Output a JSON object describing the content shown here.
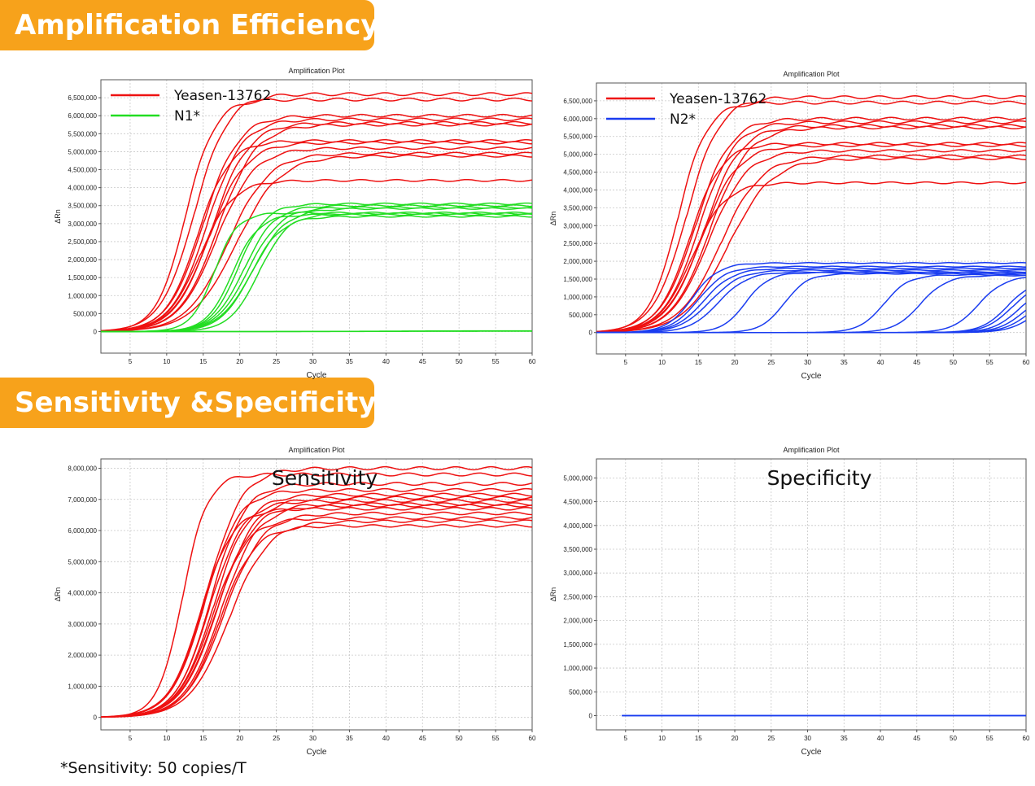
{
  "sections": {
    "efficiency_title": "Amplification Efficiency",
    "sensitivity_title": "Sensitivity &Specificity"
  },
  "footnote": "*Sensitivity: 50 copies/T",
  "colors": {
    "badge": "#f7a21b",
    "red": "#ee1111",
    "green": "#22dd22",
    "blue": "#1a3cf0"
  },
  "chart_data": [
    {
      "id": "chart1",
      "type": "line",
      "title": "Amplification Plot",
      "xlabel": "Cycle",
      "ylabel": "ΔRn",
      "xlim": [
        1,
        60
      ],
      "ylim": [
        -600000,
        7000000
      ],
      "xticks": [
        5,
        10,
        15,
        20,
        25,
        30,
        35,
        40,
        45,
        50,
        55,
        60
      ],
      "yticks": [
        0,
        500000,
        1000000,
        1500000,
        2000000,
        2500000,
        3000000,
        3500000,
        4000000,
        4500000,
        5000000,
        5500000,
        6000000,
        6500000
      ],
      "ytick_labels": [
        "0",
        "500,000",
        "1,000,000",
        "1,500,000",
        "2,000,000",
        "2,500,000",
        "3,000,000",
        "3,500,000",
        "4,000,000",
        "4,500,000",
        "5,000,000",
        "5,500,000",
        "6,000,000",
        "6,500,000"
      ],
      "grid": true,
      "legend": {
        "position": "top-left",
        "entries": [
          {
            "label": "Yeasen-13762",
            "color": "#ee1111"
          },
          {
            "label": "N1*",
            "color": "#22dd22"
          }
        ]
      },
      "series": [
        {
          "color": "#ee1111",
          "curves": [
            {
              "plateau": 6600000,
              "midpoint": 13.8,
              "slope": 2.3
            },
            {
              "plateau": 6450000,
              "midpoint": 12.6,
              "slope": 2.0
            },
            {
              "plateau": 6000000,
              "midpoint": 15.0,
              "slope": 2.4
            },
            {
              "plateau": 5900000,
              "midpoint": 15.5,
              "slope": 2.4
            },
            {
              "plateau": 5800000,
              "midpoint": 16.2,
              "slope": 2.5
            },
            {
              "plateau": 5750000,
              "midpoint": 17.0,
              "slope": 2.6
            },
            {
              "plateau": 5300000,
              "midpoint": 14.2,
              "slope": 2.2
            },
            {
              "plateau": 5250000,
              "midpoint": 15.8,
              "slope": 2.5
            },
            {
              "plateau": 5100000,
              "midpoint": 16.8,
              "slope": 2.6
            },
            {
              "plateau": 4950000,
              "midpoint": 18.4,
              "slope": 2.8
            },
            {
              "plateau": 4880000,
              "midpoint": 19.5,
              "slope": 3.0
            },
            {
              "plateau": 4200000,
              "midpoint": 14.5,
              "slope": 2.3
            }
          ]
        },
        {
          "color": "#22dd22",
          "curves": [
            {
              "plateau": 3550000,
              "midpoint": 19.8,
              "slope": 1.9
            },
            {
              "plateau": 3500000,
              "midpoint": 20.6,
              "slope": 2.1
            },
            {
              "plateau": 3450000,
              "midpoint": 21.2,
              "slope": 2.2
            },
            {
              "plateau": 3420000,
              "midpoint": 21.8,
              "slope": 2.3
            },
            {
              "plateau": 3300000,
              "midpoint": 16.5,
              "slope": 1.6
            },
            {
              "plateau": 3280000,
              "midpoint": 22.6,
              "slope": 2.0
            },
            {
              "plateau": 3250000,
              "midpoint": 19.0,
              "slope": 1.8
            },
            {
              "plateau": 3200000,
              "midpoint": 21.5,
              "slope": 2.1
            },
            {
              "plateau": 20000,
              "midpoint": 40,
              "slope": 5
            },
            {
              "plateau": 10000,
              "midpoint": 40,
              "slope": 5
            }
          ]
        }
      ]
    },
    {
      "id": "chart2",
      "type": "line",
      "title": "Amplification Plot",
      "xlabel": "Cycle",
      "ylabel": "ΔRn",
      "xlim": [
        1,
        60
      ],
      "ylim": [
        -600000,
        7000000
      ],
      "xticks": [
        5,
        10,
        15,
        20,
        25,
        30,
        35,
        40,
        45,
        50,
        55,
        60
      ],
      "yticks": [
        0,
        500000,
        1000000,
        1500000,
        2000000,
        2500000,
        3000000,
        3500000,
        4000000,
        4500000,
        5000000,
        5500000,
        6000000,
        6500000
      ],
      "ytick_labels": [
        "0",
        "500,000",
        "1,000,000",
        "1,500,000",
        "2,000,000",
        "2,500,000",
        "3,000,000",
        "3,500,000",
        "4,000,000",
        "4,500,000",
        "5,000,000",
        "5,500,000",
        "6,000,000",
        "6,500,000"
      ],
      "grid": true,
      "legend": {
        "position": "top-left",
        "entries": [
          {
            "label": "Yeasen-13762",
            "color": "#ee1111"
          },
          {
            "label": "N2*",
            "color": "#1a3cf0"
          }
        ]
      },
      "series": [
        {
          "color": "#ee1111",
          "curves": [
            {
              "plateau": 6600000,
              "midpoint": 13.4,
              "slope": 2.3
            },
            {
              "plateau": 6450000,
              "midpoint": 12.2,
              "slope": 2.0
            },
            {
              "plateau": 6000000,
              "midpoint": 14.6,
              "slope": 2.4
            },
            {
              "plateau": 5900000,
              "midpoint": 15.1,
              "slope": 2.4
            },
            {
              "plateau": 5800000,
              "midpoint": 15.8,
              "slope": 2.5
            },
            {
              "plateau": 5750000,
              "midpoint": 16.6,
              "slope": 2.6
            },
            {
              "plateau": 5300000,
              "midpoint": 13.8,
              "slope": 2.2
            },
            {
              "plateau": 5250000,
              "midpoint": 15.4,
              "slope": 2.5
            },
            {
              "plateau": 5100000,
              "midpoint": 16.4,
              "slope": 2.6
            },
            {
              "plateau": 4950000,
              "midpoint": 18.0,
              "slope": 2.8
            },
            {
              "plateau": 4880000,
              "midpoint": 19.1,
              "slope": 3.0
            },
            {
              "plateau": 4200000,
              "midpoint": 14.1,
              "slope": 2.3
            }
          ]
        },
        {
          "color": "#1a3cf0",
          "curves": [
            {
              "plateau": 1950000,
              "midpoint": 14.2,
              "slope": 1.8
            },
            {
              "plateau": 1850000,
              "midpoint": 15.0,
              "slope": 1.9
            },
            {
              "plateau": 1800000,
              "midpoint": 15.8,
              "slope": 2.0
            },
            {
              "plateau": 1750000,
              "midpoint": 16.6,
              "slope": 2.1
            },
            {
              "plateau": 1700000,
              "midpoint": 17.8,
              "slope": 2.0
            },
            {
              "plateau": 1680000,
              "midpoint": 21.5,
              "slope": 1.6
            },
            {
              "plateau": 1650000,
              "midpoint": 26.8,
              "slope": 1.6
            },
            {
              "plateau": 1620000,
              "midpoint": 40.5,
              "slope": 1.7
            },
            {
              "plateau": 1600000,
              "midpoint": 45.5,
              "slope": 1.8
            },
            {
              "plateau": 1580000,
              "midpoint": 53.5,
              "slope": 1.8
            },
            {
              "plateau": 1500000,
              "midpoint": 57.5,
              "slope": 1.8
            },
            {
              "plateau": 1400000,
              "midpoint": 58.0,
              "slope": 1.8
            },
            {
              "plateau": 1300000,
              "midpoint": 59.0,
              "slope": 1.8
            },
            {
              "plateau": 1200000,
              "midpoint": 59.8,
              "slope": 1.8
            },
            {
              "plateau": 1100000,
              "midpoint": 60.5,
              "slope": 1.8
            },
            {
              "plateau": 1000000,
              "midpoint": 61.2,
              "slope": 1.8
            }
          ]
        }
      ]
    },
    {
      "id": "chart3",
      "type": "line",
      "title": "Amplification Plot",
      "annotation": "Sensitivity",
      "xlabel": "Cycle",
      "ylabel": "ΔRn",
      "xlim": [
        1,
        60
      ],
      "ylim": [
        -400000,
        8300000
      ],
      "xticks": [
        5,
        10,
        15,
        20,
        25,
        30,
        35,
        40,
        45,
        50,
        55,
        60
      ],
      "yticks": [
        0,
        1000000,
        2000000,
        3000000,
        4000000,
        5000000,
        6000000,
        7000000,
        8000000
      ],
      "ytick_labels": [
        "0",
        "1,000,000",
        "2,000,000",
        "3,000,000",
        "4,000,000",
        "5,000,000",
        "6,000,000",
        "7,000,000",
        "8,000,000"
      ],
      "grid": true,
      "series": [
        {
          "color": "#ee1111",
          "curves": [
            {
              "plateau": 8000000,
              "midpoint": 15.5,
              "slope": 2.4
            },
            {
              "plateau": 7800000,
              "midpoint": 12.2,
              "slope": 1.7
            },
            {
              "plateau": 7500000,
              "midpoint": 16.0,
              "slope": 2.3
            },
            {
              "plateau": 7300000,
              "midpoint": 15.2,
              "slope": 2.3
            },
            {
              "plateau": 7150000,
              "midpoint": 16.4,
              "slope": 2.4
            },
            {
              "plateau": 7050000,
              "midpoint": 17.0,
              "slope": 2.5
            },
            {
              "plateau": 6950000,
              "midpoint": 15.8,
              "slope": 2.3
            },
            {
              "plateau": 6850000,
              "midpoint": 16.8,
              "slope": 2.5
            },
            {
              "plateau": 6800000,
              "midpoint": 17.4,
              "slope": 2.5
            },
            {
              "plateau": 6700000,
              "midpoint": 14.6,
              "slope": 2.2
            },
            {
              "plateau": 6550000,
              "midpoint": 17.8,
              "slope": 2.6
            },
            {
              "plateau": 6400000,
              "midpoint": 16.2,
              "slope": 2.4
            },
            {
              "plateau": 6300000,
              "midpoint": 18.5,
              "slope": 2.7
            },
            {
              "plateau": 6150000,
              "midpoint": 17.2,
              "slope": 2.4
            }
          ]
        }
      ]
    },
    {
      "id": "chart4",
      "type": "line",
      "title": "Amplification Plot",
      "annotation": "Specificity",
      "xlabel": "Cycle",
      "ylabel": "ΔRn",
      "xlim": [
        1,
        60
      ],
      "ylim": [
        -300000,
        5400000
      ],
      "xticks": [
        5,
        10,
        15,
        20,
        25,
        30,
        35,
        40,
        45,
        50,
        55,
        60
      ],
      "yticks": [
        0,
        500000,
        1000000,
        1500000,
        2000000,
        2500000,
        3000000,
        3500000,
        4000000,
        4500000,
        5000000
      ],
      "ytick_labels": [
        "0",
        "500,000",
        "1,000,000",
        "1,500,000",
        "2,000,000",
        "2,500,000",
        "3,000,000",
        "3,500,000",
        "4,000,000",
        "4,500,000",
        "5,000,000"
      ],
      "grid": true,
      "series": [
        {
          "color": "#1a3cf0",
          "flat_from": 4.5,
          "curves": [
            {
              "plateau": 0,
              "midpoint": 40,
              "slope": 5
            },
            {
              "plateau": 0,
              "midpoint": 40,
              "slope": 5
            },
            {
              "plateau": 0,
              "midpoint": 40,
              "slope": 5
            }
          ]
        }
      ]
    }
  ]
}
